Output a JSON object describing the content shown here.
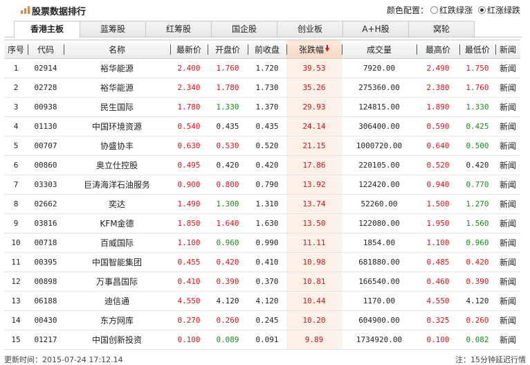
{
  "header": {
    "title": "股票数据排行",
    "color_config_label": "颜色配置：",
    "option1": "红跌绿涨",
    "option2": "红涨绿跌",
    "selected": "option2"
  },
  "tabs": [
    {
      "label": "香港主板",
      "active": true
    },
    {
      "label": "蓝筹股",
      "active": false
    },
    {
      "label": "红筹股",
      "active": false
    },
    {
      "label": "国企股",
      "active": false
    },
    {
      "label": "创业板",
      "active": false
    },
    {
      "label": "A+H股",
      "active": false
    },
    {
      "label": "窝轮",
      "active": false
    }
  ],
  "columns": [
    "序号",
    "代码",
    "名称",
    "最新价",
    "开盘价",
    "前收盘",
    "张跌幅",
    "成交量",
    "最高价",
    "最低价",
    "新闻"
  ],
  "colors": {
    "up": "#e0111a",
    "down": "#1a8a1a",
    "flat": "#222222"
  },
  "rows": [
    {
      "no": "1",
      "code": "02914",
      "name": "裕华能源",
      "last": "2.400",
      "last_c": "red",
      "open": "1.760",
      "open_c": "red",
      "prev": "1.720",
      "chg": "39.53",
      "vol": "7920.00",
      "high": "2.490",
      "high_c": "red",
      "low": "1.750",
      "low_c": "red",
      "news": "新闻"
    },
    {
      "no": "2",
      "code": "02728",
      "name": "裕华能源",
      "last": "2.340",
      "last_c": "red",
      "open": "1.780",
      "open_c": "red",
      "prev": "1.730",
      "chg": "35.26",
      "vol": "275360.00",
      "high": "2.380",
      "high_c": "red",
      "low": "1.760",
      "low_c": "red",
      "news": "新闻"
    },
    {
      "no": "3",
      "code": "00938",
      "name": "民生国际",
      "last": "1.780",
      "last_c": "red",
      "open": "1.330",
      "open_c": "green",
      "prev": "1.370",
      "chg": "29.93",
      "vol": "124815.00",
      "high": "1.890",
      "high_c": "red",
      "low": "1.330",
      "low_c": "green",
      "news": "新闻"
    },
    {
      "no": "4",
      "code": "01130",
      "name": "中国环境资源",
      "last": "0.540",
      "last_c": "red",
      "open": "0.435",
      "open_c": "black",
      "prev": "0.435",
      "chg": "24.14",
      "vol": "306400.00",
      "high": "0.590",
      "high_c": "red",
      "low": "0.425",
      "low_c": "green",
      "news": "新闻"
    },
    {
      "no": "5",
      "code": "00707",
      "name": "协盛协丰",
      "last": "0.630",
      "last_c": "red",
      "open": "0.530",
      "open_c": "red",
      "prev": "0.520",
      "chg": "21.15",
      "vol": "1000720.00",
      "high": "0.640",
      "high_c": "red",
      "low": "0.500",
      "low_c": "green",
      "news": "新闻"
    },
    {
      "no": "6",
      "code": "00860",
      "name": "奥立仕控股",
      "last": "0.495",
      "last_c": "red",
      "open": "0.420",
      "open_c": "black",
      "prev": "0.420",
      "chg": "17.86",
      "vol": "220105.00",
      "high": "0.520",
      "high_c": "red",
      "low": "0.420",
      "low_c": "black",
      "news": "新闻"
    },
    {
      "no": "7",
      "code": "03303",
      "name": "巨涛海洋石油服务",
      "last": "0.900",
      "last_c": "red",
      "open": "0.800",
      "open_c": "red",
      "prev": "0.790",
      "chg": "13.92",
      "vol": "122420.00",
      "high": "0.940",
      "high_c": "red",
      "low": "0.770",
      "low_c": "green",
      "news": "新闻"
    },
    {
      "no": "8",
      "code": "02662",
      "name": "奕达",
      "last": "1.490",
      "last_c": "red",
      "open": "1.300",
      "open_c": "green",
      "prev": "1.310",
      "chg": "13.74",
      "vol": "52260.00",
      "high": "1.500",
      "high_c": "red",
      "low": "1.270",
      "low_c": "green",
      "news": "新闻"
    },
    {
      "no": "9",
      "code": "03816",
      "name": "KFM金德",
      "last": "1.850",
      "last_c": "red",
      "open": "1.640",
      "open_c": "red",
      "prev": "1.630",
      "chg": "13.50",
      "vol": "122080.00",
      "high": "1.950",
      "high_c": "red",
      "low": "1.560",
      "low_c": "green",
      "news": "新闻"
    },
    {
      "no": "10",
      "code": "00718",
      "name": "百威国际",
      "last": "1.100",
      "last_c": "red",
      "open": "0.960",
      "open_c": "green",
      "prev": "0.990",
      "chg": "11.11",
      "vol": "1854.00",
      "high": "1.100",
      "high_c": "red",
      "low": "0.960",
      "low_c": "green",
      "news": "新闻"
    },
    {
      "no": "11",
      "code": "00395",
      "name": "中国智能集团",
      "last": "0.455",
      "last_c": "red",
      "open": "0.420",
      "open_c": "red",
      "prev": "0.410",
      "chg": "10.98",
      "vol": "681880.00",
      "high": "0.485",
      "high_c": "red",
      "low": "0.420",
      "low_c": "red",
      "news": "新闻"
    },
    {
      "no": "12",
      "code": "00898",
      "name": "万事昌国际",
      "last": "0.410",
      "last_c": "red",
      "open": "0.390",
      "open_c": "red",
      "prev": "0.370",
      "chg": "10.81",
      "vol": "166540.00",
      "high": "0.460",
      "high_c": "red",
      "low": "0.390",
      "low_c": "red",
      "news": "新闻"
    },
    {
      "no": "13",
      "code": "06188",
      "name": "迪信通",
      "last": "4.550",
      "last_c": "red",
      "open": "4.120",
      "open_c": "black",
      "prev": "4.120",
      "chg": "10.44",
      "vol": "1170.00",
      "high": "4.550",
      "high_c": "red",
      "low": "4.120",
      "low_c": "black",
      "news": "新闻"
    },
    {
      "no": "14",
      "code": "00430",
      "name": "东方网库",
      "last": "0.270",
      "last_c": "red",
      "open": "0.260",
      "open_c": "red",
      "prev": "0.245",
      "chg": "10.20",
      "vol": "604900.00",
      "high": "0.325",
      "high_c": "red",
      "low": "0.260",
      "low_c": "red",
      "news": "新闻"
    },
    {
      "no": "15",
      "code": "01217",
      "name": "中国创新投资",
      "last": "0.100",
      "last_c": "red",
      "open": "0.089",
      "open_c": "green",
      "prev": "0.091",
      "chg": "9.89",
      "vol": "1734920.00",
      "high": "0.100",
      "high_c": "red",
      "low": "0.082",
      "low_c": "green",
      "news": "新闻"
    }
  ],
  "footer": {
    "updated_label": "更新时间：",
    "updated_time": "2015-07-24 17:12.14",
    "note": "注：15分钟延迟行情"
  }
}
